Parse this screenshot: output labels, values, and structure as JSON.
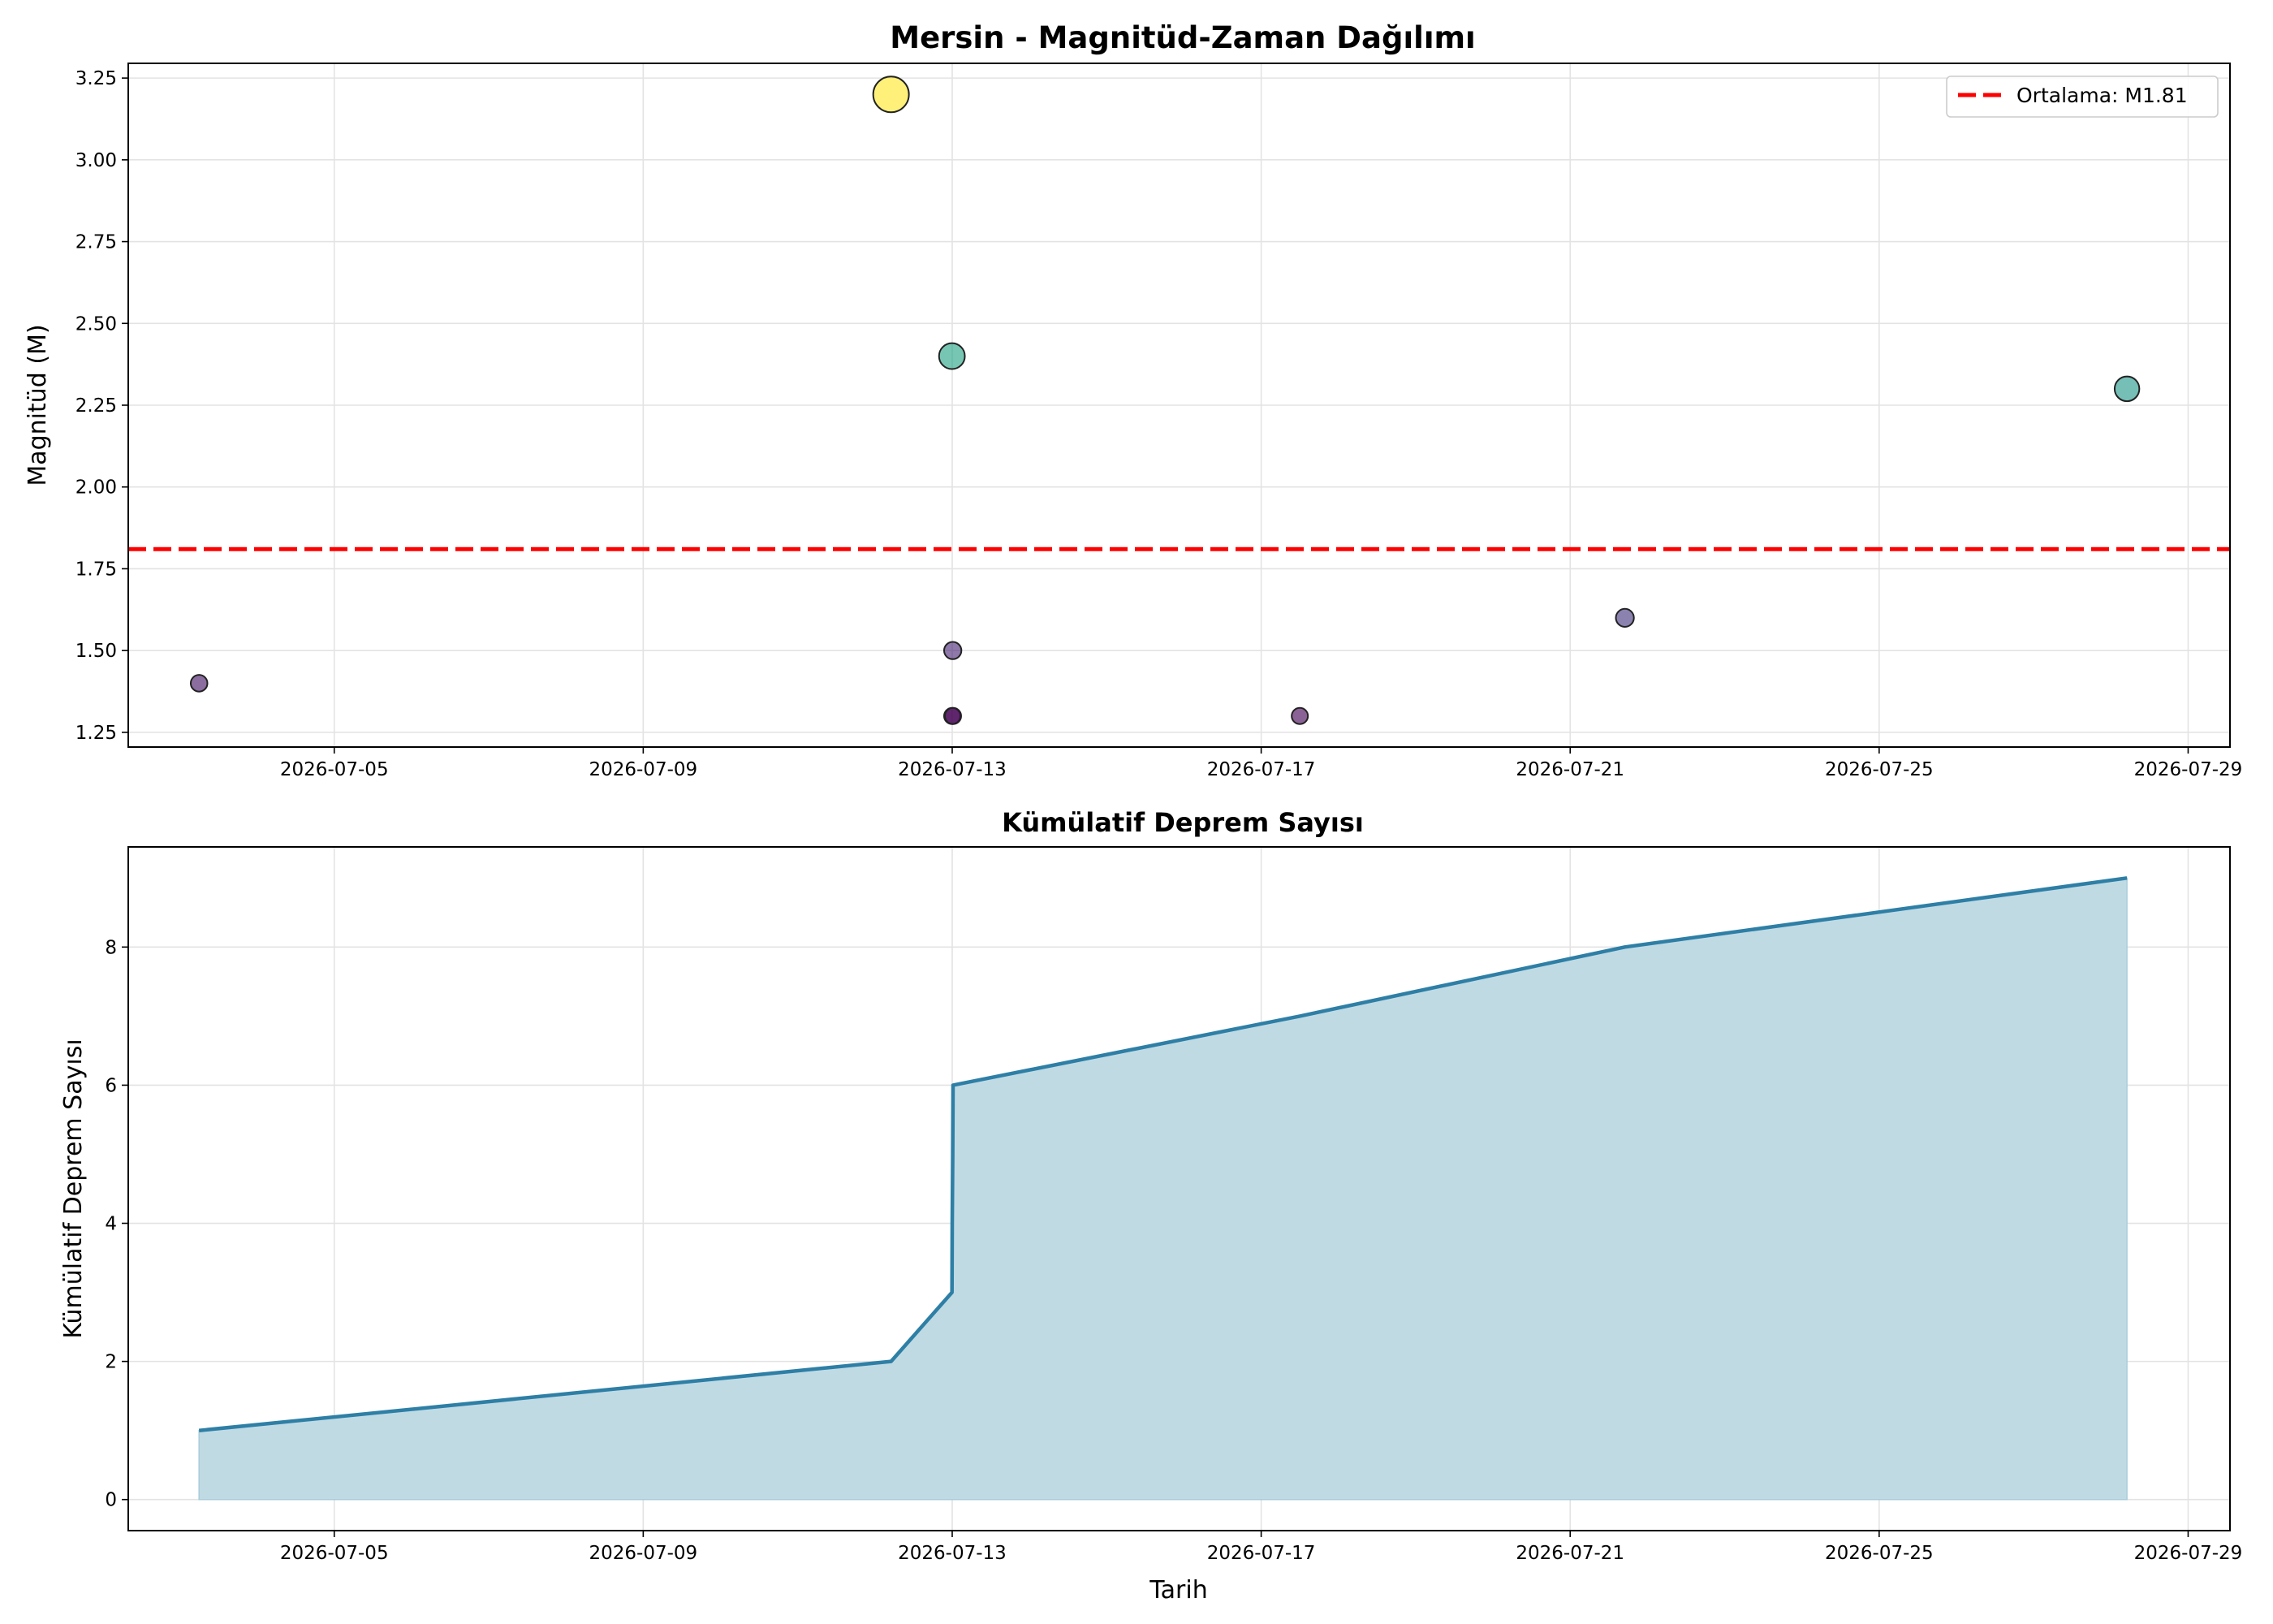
{
  "chart_data": [
    {
      "type": "scatter",
      "title": "Mersin - Magnitüd-Zaman Dağılımı",
      "xlabel": "",
      "ylabel": "Magnitüd (M)",
      "x_ticks": [
        "2026-07-05",
        "2026-07-09",
        "2026-07-13",
        "2026-07-17",
        "2026-07-21",
        "2026-07-25",
        "2026-07-29"
      ],
      "y_ticks": [
        "1.25",
        "1.50",
        "1.75",
        "2.00",
        "2.25",
        "2.50",
        "2.75",
        "3.00",
        "3.25"
      ],
      "xlim": [
        "2026-07-02 08:00",
        "2026-07-29 13:00"
      ],
      "ylim": [
        1.205,
        3.295
      ],
      "grid": true,
      "points": [
        {
          "t": "2026-07-03 06:00",
          "mag": 1.4
        },
        {
          "t": "2026-07-12 05:00",
          "mag": 3.2
        },
        {
          "t": "2026-07-12 23:55",
          "mag": 2.4
        },
        {
          "t": "2026-07-13 00:00",
          "mag": 1.3
        },
        {
          "t": "2026-07-13 00:10",
          "mag": 1.5
        },
        {
          "t": "2026-07-13 00:15",
          "mag": 1.3
        },
        {
          "t": "2026-07-17 12:00",
          "mag": 1.3
        },
        {
          "t": "2026-07-21 17:00",
          "mag": 1.6
        },
        {
          "t": "2026-07-28 05:00",
          "mag": 2.3
        }
      ],
      "colormap": "viridis",
      "mean_line": {
        "value": 1.81,
        "color": "#ff0000"
      },
      "legend": {
        "position": "top-right",
        "entries": [
          "Ortalama: M1.81"
        ]
      }
    },
    {
      "type": "area",
      "title": "Kümülatif Deprem Sayısı",
      "xlabel": "Tarih",
      "ylabel": "Kümülatif Deprem Sayısı",
      "x_ticks": [
        "2026-07-05",
        "2026-07-09",
        "2026-07-13",
        "2026-07-17",
        "2026-07-21",
        "2026-07-25",
        "2026-07-29"
      ],
      "y_ticks": [
        "0",
        "2",
        "4",
        "6",
        "8"
      ],
      "xlim": [
        "2026-07-02 08:00",
        "2026-07-29 13:00"
      ],
      "ylim": [
        -0.45,
        9.45
      ],
      "grid": true,
      "line_color": "#2e7fa6",
      "fill_color": "#c0dae4",
      "points": [
        {
          "t": "2026-07-03 06:00",
          "count": 1
        },
        {
          "t": "2026-07-12 05:00",
          "count": 2
        },
        {
          "t": "2026-07-12 23:55",
          "count": 3
        },
        {
          "t": "2026-07-13 00:00",
          "count": 4
        },
        {
          "t": "2026-07-13 00:10",
          "count": 5
        },
        {
          "t": "2026-07-13 00:15",
          "count": 6
        },
        {
          "t": "2026-07-17 12:00",
          "count": 7
        },
        {
          "t": "2026-07-21 17:00",
          "count": 8
        },
        {
          "t": "2026-07-28 05:00",
          "count": 9
        }
      ]
    }
  ]
}
